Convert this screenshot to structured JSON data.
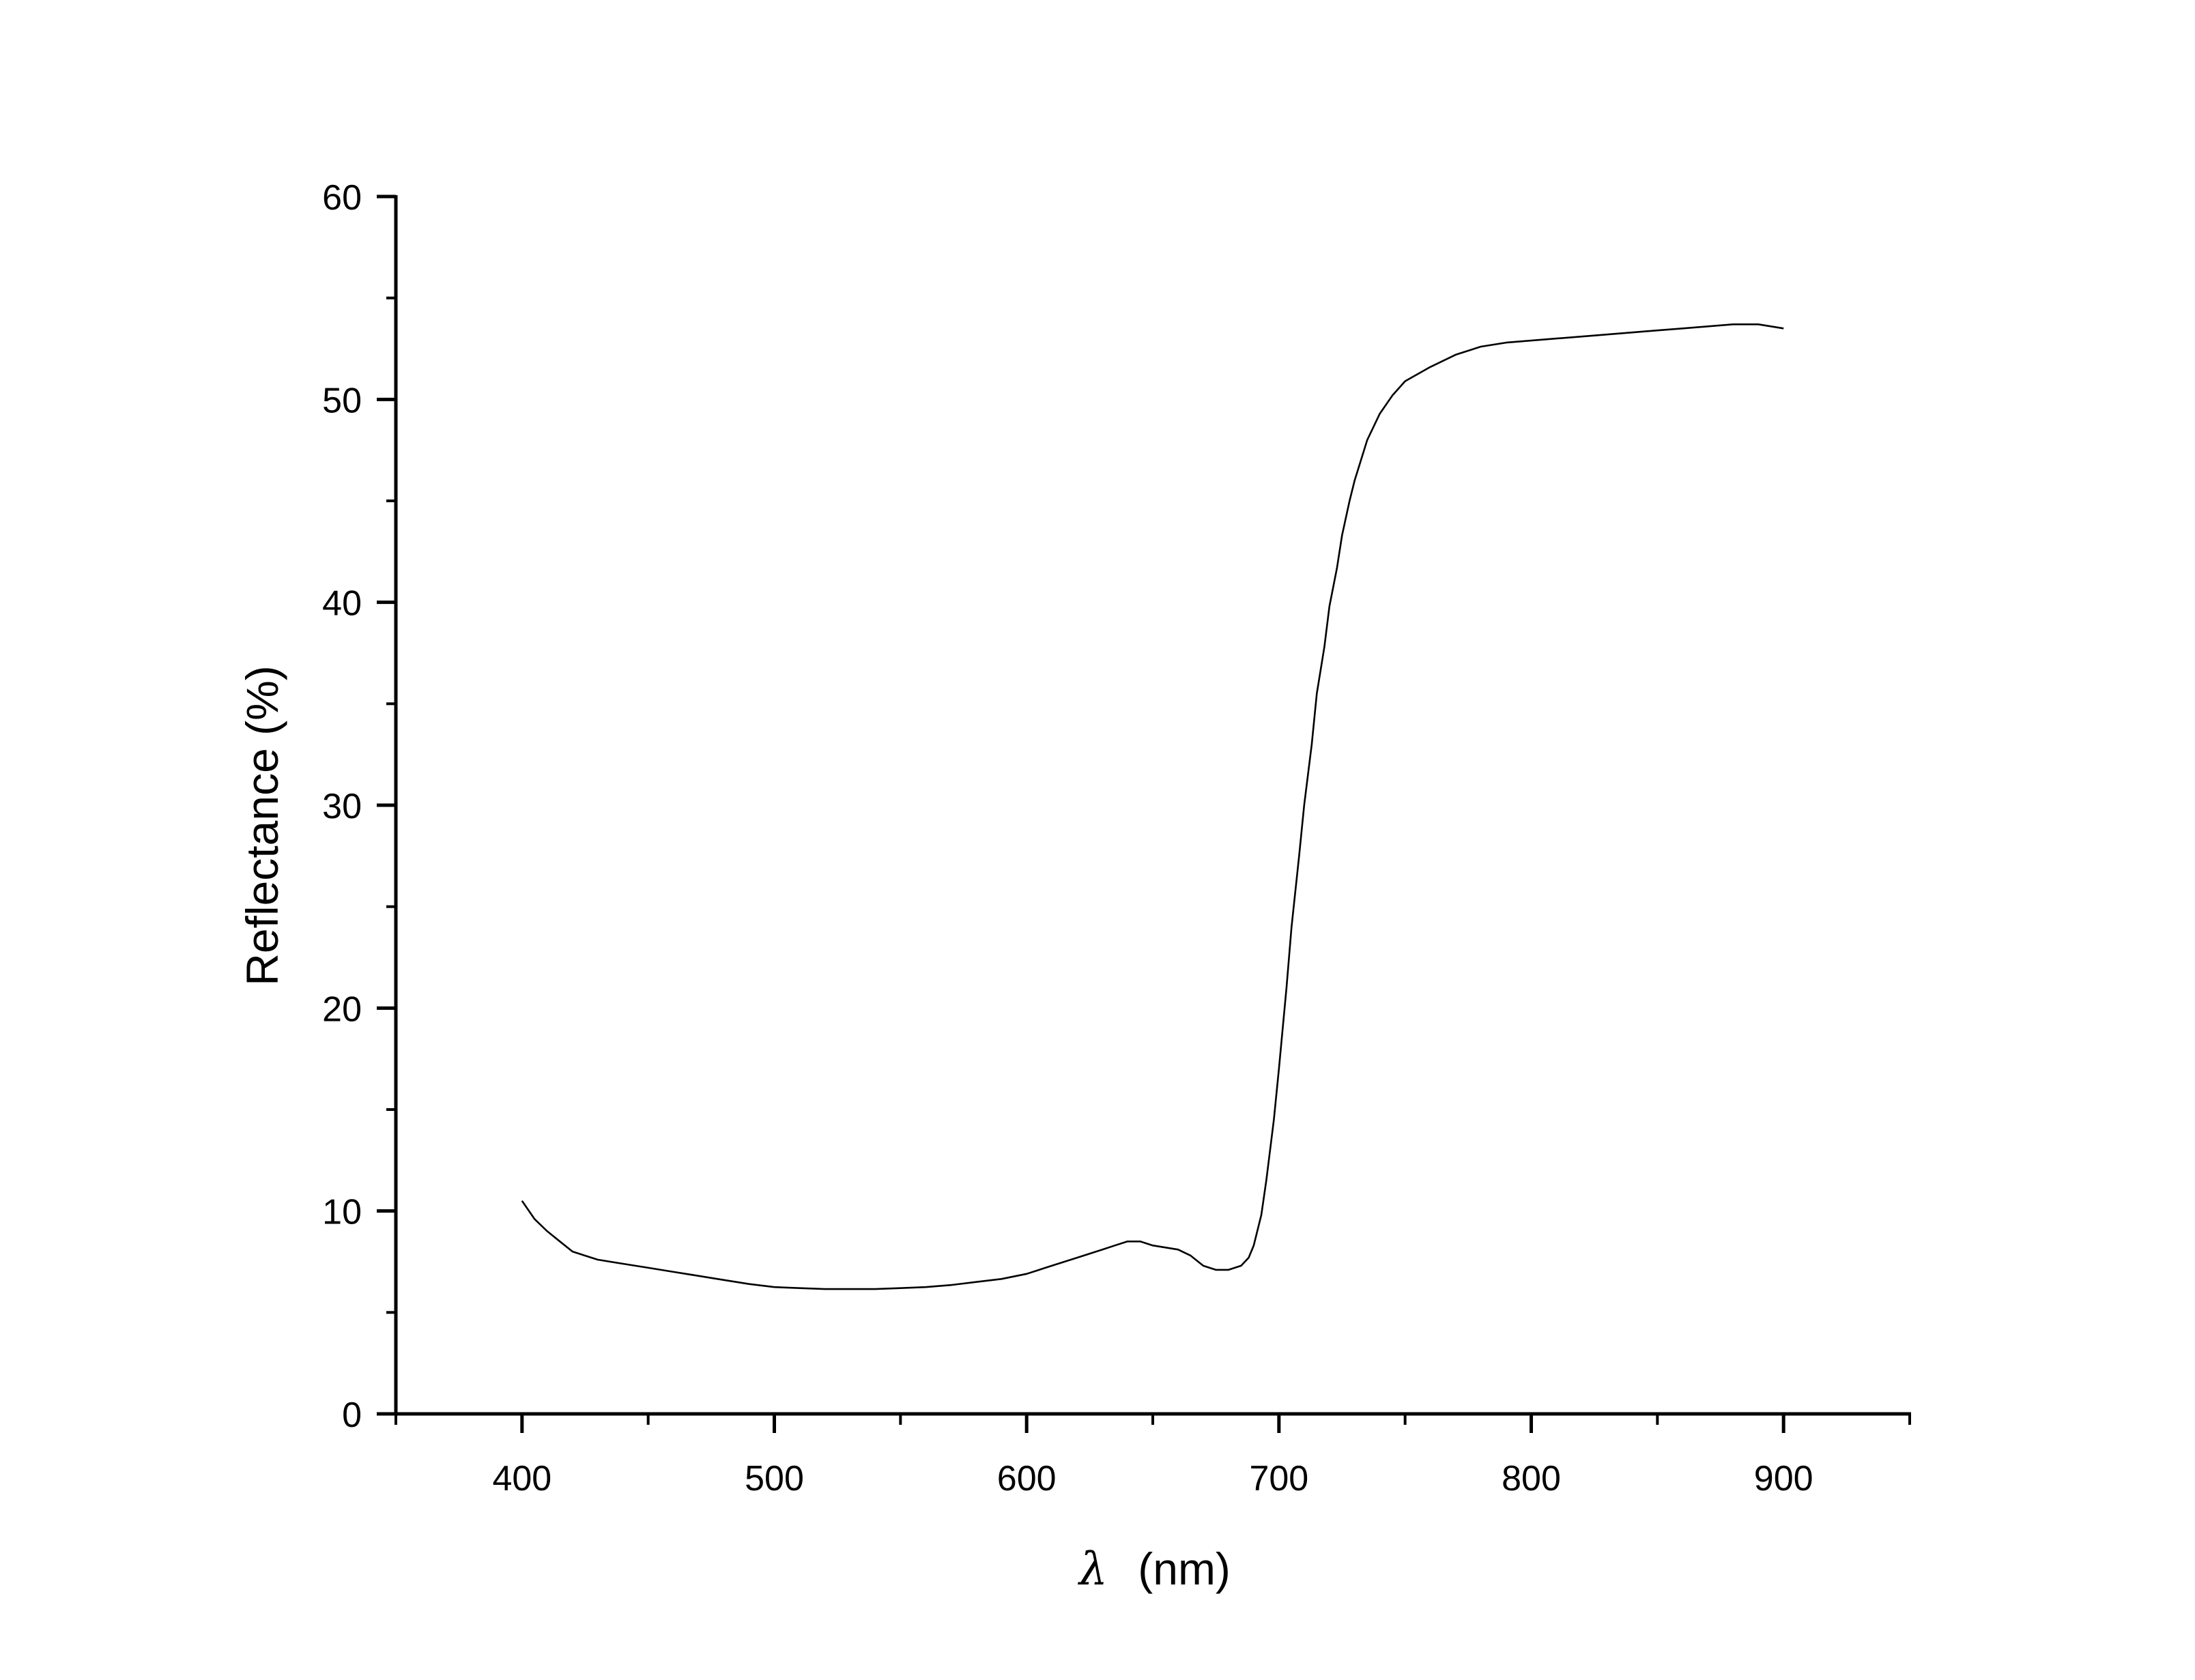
{
  "chart_data": {
    "type": "line",
    "title": "",
    "xlabel_symbol": "λ",
    "xlabel_unit": "(nm)",
    "ylabel": "Reflectance (%)",
    "xlim": [
      350,
      950
    ],
    "ylim": [
      0,
      60
    ],
    "x_major_ticks": [
      400,
      500,
      600,
      700,
      800,
      900
    ],
    "x_minor_ticks": [
      350,
      450,
      550,
      650,
      750,
      850,
      950
    ],
    "y_major_ticks": [
      0,
      10,
      20,
      30,
      40,
      50,
      60
    ],
    "y_minor_ticks": [
      5,
      15,
      25,
      35,
      45,
      55
    ],
    "grid": false,
    "legend": "none",
    "line_color": "#000000",
    "series": [
      {
        "x": [
          400,
          405,
          410,
          415,
          420,
          425,
          430,
          440,
          450,
          460,
          470,
          480,
          490,
          500,
          510,
          520,
          530,
          540,
          550,
          560,
          570,
          580,
          590,
          600,
          610,
          620,
          630,
          635,
          640,
          645,
          650,
          655,
          660,
          665,
          670,
          675,
          680,
          685,
          688,
          690,
          693,
          695,
          698,
          700,
          703,
          705,
          708,
          710,
          713,
          715,
          718,
          720,
          723,
          725,
          728,
          730,
          735,
          740,
          745,
          750,
          760,
          770,
          780,
          790,
          800,
          810,
          820,
          830,
          840,
          850,
          860,
          870,
          880,
          890,
          900
        ],
        "y": [
          10.5,
          9.6,
          9.0,
          8.5,
          8.0,
          7.8,
          7.6,
          7.4,
          7.2,
          7.0,
          6.8,
          6.6,
          6.4,
          6.25,
          6.2,
          6.15,
          6.15,
          6.15,
          6.2,
          6.25,
          6.35,
          6.5,
          6.65,
          6.9,
          7.3,
          7.7,
          8.1,
          8.3,
          8.5,
          8.5,
          8.3,
          8.2,
          8.1,
          7.8,
          7.3,
          7.1,
          7.1,
          7.3,
          7.7,
          8.3,
          9.8,
          11.5,
          14.5,
          17.0,
          21.0,
          24.0,
          27.5,
          30.0,
          33.0,
          35.5,
          37.8,
          39.8,
          41.7,
          43.3,
          45.0,
          46.0,
          48.0,
          49.3,
          50.2,
          50.9,
          51.6,
          52.2,
          52.6,
          52.8,
          52.9,
          53.0,
          53.1,
          53.2,
          53.3,
          53.4,
          53.5,
          53.6,
          53.7,
          53.7,
          53.5
        ]
      }
    ]
  }
}
